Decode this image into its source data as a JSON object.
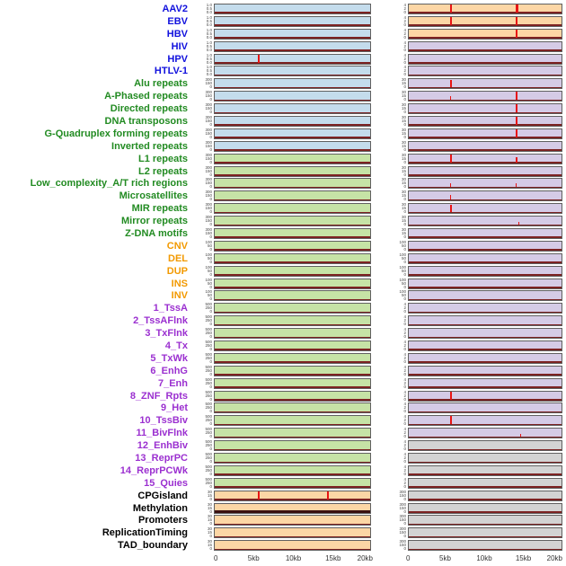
{
  "chart_data": {
    "type": "area",
    "description": "Multi-track genomic signal plot: 44 annotation tracks, two panel columns, red peaks over flat baseline",
    "x_axis": {
      "labels": [
        "0",
        "5kb",
        "10kb",
        "15kb",
        "20kb"
      ],
      "positions": [
        0,
        0.25,
        0.5,
        0.75,
        1
      ],
      "range_bp": [
        0,
        20000
      ]
    },
    "palette": {
      "label_blue": "#1111dd",
      "label_green": "#228B22",
      "label_orange": "#f29900",
      "label_purple": "#9b30d0",
      "label_black": "#000000",
      "panel_blue": "#c4dcec",
      "panel_green": "#c6e3a6",
      "panel_orange": "#fcd6a5",
      "panel_purple": "#d5cbe6",
      "panel_gray": "#d3d3d3",
      "spike": "#e81515",
      "baseline": "#7c2222",
      "baseline_strong": "#3a1010"
    },
    "tick_sets": {
      "A": [
        "1.0",
        "0.5",
        "0.0"
      ],
      "B": [
        "300",
        "150",
        "0"
      ],
      "C": [
        "30",
        "15",
        "0"
      ],
      "D": [
        "500",
        "250",
        "0"
      ],
      "E": [
        "4",
        "2",
        "0"
      ],
      "F": [
        "100",
        "50",
        "0"
      ]
    },
    "rows": [
      {
        "label": "AAV2",
        "lc": "blue",
        "lbg": "blue",
        "rbg": "orange",
        "lt": "A",
        "rt": "E",
        "ls": [],
        "rs": [
          [
            0.27,
            0.9,
            2
          ],
          [
            0.7,
            0.9,
            3
          ]
        ]
      },
      {
        "label": "EBV",
        "lc": "blue",
        "lbg": "blue",
        "rbg": "orange",
        "lt": "A",
        "rt": "E",
        "ls": [],
        "rs": [
          [
            0.27,
            0.85,
            2
          ],
          [
            0.7,
            0.85,
            2
          ]
        ]
      },
      {
        "label": "HBV",
        "lc": "blue",
        "lbg": "blue",
        "rbg": "orange",
        "lt": "A",
        "rt": "E",
        "ls": [],
        "rs": [
          [
            0.7,
            0.92,
            2
          ]
        ]
      },
      {
        "label": "HIV",
        "lc": "blue",
        "lbg": "blue",
        "rbg": "purple",
        "lt": "A",
        "rt": "E",
        "ls": [],
        "rs": []
      },
      {
        "label": "HPV",
        "lc": "blue",
        "lbg": "blue",
        "rbg": "purple",
        "lt": "A",
        "rt": "E",
        "ls": [
          [
            0.28,
            0.9,
            2
          ]
        ],
        "rs": []
      },
      {
        "label": "HTLV-1",
        "lc": "blue",
        "lbg": "blue",
        "rbg": "purple",
        "lt": "A",
        "rt": "E",
        "ls": [],
        "rs": []
      },
      {
        "label": "Alu repeats",
        "lc": "green",
        "lbg": "blue",
        "rbg": "purple",
        "lt": "B",
        "rt": "C",
        "ls": [],
        "rs": [
          [
            0.27,
            0.8,
            2
          ]
        ]
      },
      {
        "label": "A-Phased repeats",
        "lc": "green",
        "lbg": "blue",
        "rbg": "purple",
        "lt": "B",
        "rt": "C",
        "ls": [],
        "rs": [
          [
            0.27,
            0.45,
            1
          ],
          [
            0.7,
            0.92,
            2
          ]
        ]
      },
      {
        "label": "Directed repeats",
        "lc": "green",
        "lbg": "blue",
        "rbg": "purple",
        "lt": "B",
        "rt": "C",
        "ls": [],
        "rs": [
          [
            0.7,
            0.88,
            2
          ]
        ]
      },
      {
        "label": "DNA transposons",
        "lc": "green",
        "lbg": "blue",
        "rbg": "purple",
        "lt": "B",
        "rt": "C",
        "ls": [],
        "rs": [
          [
            0.7,
            0.92,
            2
          ]
        ]
      },
      {
        "label": "G-Quadruplex forming repeats",
        "lc": "green",
        "lbg": "blue",
        "rbg": "purple",
        "lt": "B",
        "rt": "C",
        "ls": [],
        "rs": [
          [
            0.7,
            0.85,
            2
          ]
        ]
      },
      {
        "label": "Inverted repeats",
        "lc": "green",
        "lbg": "blue",
        "rbg": "purple",
        "lt": "B",
        "rt": "C",
        "ls": [],
        "rs": []
      },
      {
        "label": "L1 repeats",
        "lc": "green",
        "lbg": "green",
        "rbg": "purple",
        "lt": "B",
        "rt": "C",
        "ls": [],
        "rs": [
          [
            0.27,
            0.85,
            2
          ],
          [
            0.7,
            0.55,
            2
          ]
        ]
      },
      {
        "label": "L2 repeats",
        "lc": "green",
        "lbg": "green",
        "rbg": "purple",
        "lt": "B",
        "rt": "C",
        "ls": [],
        "rs": []
      },
      {
        "label": "Low_complexity_A/T rich regions",
        "lc": "green",
        "lbg": "green",
        "rbg": "purple",
        "lt": "B",
        "rt": "C",
        "ls": [],
        "rs": [
          [
            0.27,
            0.4,
            1
          ],
          [
            0.7,
            0.4,
            1
          ]
        ]
      },
      {
        "label": "Microsatellites",
        "lc": "green",
        "lbg": "green",
        "rbg": "purple",
        "lt": "B",
        "rt": "C",
        "ls": [],
        "rs": [
          [
            0.27,
            0.5,
            1
          ]
        ]
      },
      {
        "label": "MIR repeats",
        "lc": "green",
        "lbg": "green",
        "rbg": "purple",
        "lt": "B",
        "rt": "C",
        "ls": [],
        "rs": [
          [
            0.27,
            0.8,
            2
          ]
        ]
      },
      {
        "label": "Mirror repeats",
        "lc": "green",
        "lbg": "green",
        "rbg": "purple",
        "lt": "B",
        "rt": "C",
        "ls": [],
        "rs": [
          [
            0.72,
            0.3,
            1
          ]
        ]
      },
      {
        "label": "Z-DNA motifs",
        "lc": "green",
        "lbg": "green",
        "rbg": "purple",
        "lt": "B",
        "rt": "C",
        "ls": [],
        "rs": []
      },
      {
        "label": "CNV",
        "lc": "orange",
        "lbg": "green",
        "rbg": "purple",
        "lt": "F",
        "rt": "F",
        "ls": [],
        "rs": []
      },
      {
        "label": "DEL",
        "lc": "orange",
        "lbg": "green",
        "rbg": "purple",
        "lt": "F",
        "rt": "F",
        "ls": [],
        "rs": []
      },
      {
        "label": "DUP",
        "lc": "orange",
        "lbg": "green",
        "rbg": "purple",
        "lt": "F",
        "rt": "F",
        "ls": [],
        "rs": []
      },
      {
        "label": "INS",
        "lc": "orange",
        "lbg": "green",
        "rbg": "purple",
        "lt": "F",
        "rt": "F",
        "ls": [],
        "rs": []
      },
      {
        "label": "INV",
        "lc": "orange",
        "lbg": "green",
        "rbg": "purple",
        "lt": "F",
        "rt": "F",
        "ls": [],
        "rs": []
      },
      {
        "label": "1_TssA",
        "lc": "purple",
        "lbg": "green",
        "rbg": "purple",
        "lt": "D",
        "rt": "E",
        "ls": [],
        "rs": []
      },
      {
        "label": "2_TssAFlnk",
        "lc": "purple",
        "lbg": "green",
        "rbg": "purple",
        "lt": "D",
        "rt": "E",
        "ls": [],
        "rs": []
      },
      {
        "label": "3_TxFlnk",
        "lc": "purple",
        "lbg": "green",
        "rbg": "purple",
        "lt": "D",
        "rt": "E",
        "ls": [],
        "rs": []
      },
      {
        "label": "4_Tx",
        "lc": "purple",
        "lbg": "green",
        "rbg": "purple",
        "lt": "D",
        "rt": "E",
        "ls": [],
        "rs": []
      },
      {
        "label": "5_TxWk",
        "lc": "purple",
        "lbg": "green",
        "rbg": "purple",
        "lt": "D",
        "rt": "E",
        "ls": [],
        "rs": []
      },
      {
        "label": "6_EnhG",
        "lc": "purple",
        "lbg": "green",
        "rbg": "purple",
        "lt": "D",
        "rt": "E",
        "ls": [],
        "rs": []
      },
      {
        "label": "7_Enh",
        "lc": "purple",
        "lbg": "green",
        "rbg": "purple",
        "lt": "D",
        "rt": "E",
        "ls": [],
        "rs": []
      },
      {
        "label": "8_ZNF_Rpts",
        "lc": "purple",
        "lbg": "green",
        "rbg": "purple",
        "lt": "D",
        "rt": "E",
        "ls": [],
        "rs": [
          [
            0.27,
            0.92,
            2
          ]
        ]
      },
      {
        "label": "9_Het",
        "lc": "purple",
        "lbg": "green",
        "rbg": "purple",
        "lt": "D",
        "rt": "E",
        "ls": [],
        "rs": []
      },
      {
        "label": "10_TssBiv",
        "lc": "purple",
        "lbg": "green",
        "rbg": "purple",
        "lt": "D",
        "rt": "E",
        "ls": [],
        "rs": [
          [
            0.27,
            0.92,
            2
          ]
        ]
      },
      {
        "label": "11_BivFlnk",
        "lc": "purple",
        "lbg": "green",
        "rbg": "purple",
        "lt": "D",
        "rt": "E",
        "ls": [],
        "rs": [
          [
            0.73,
            0.3,
            1
          ]
        ]
      },
      {
        "label": "12_EnhBiv",
        "lc": "purple",
        "lbg": "green",
        "rbg": "gray",
        "lt": "D",
        "rt": "E",
        "ls": [],
        "rs": []
      },
      {
        "label": "13_ReprPC",
        "lc": "purple",
        "lbg": "green",
        "rbg": "gray",
        "lt": "D",
        "rt": "E",
        "ls": [],
        "rs": []
      },
      {
        "label": "14_ReprPCWk",
        "lc": "purple",
        "lbg": "green",
        "rbg": "gray",
        "lt": "D",
        "rt": "E",
        "ls": [],
        "rs": []
      },
      {
        "label": "15_Quies",
        "lc": "purple",
        "lbg": "green",
        "rbg": "gray",
        "lt": "D",
        "rt": "E",
        "ls": [],
        "rs": []
      },
      {
        "label": "CPGisland",
        "lc": "black",
        "lbg": "orange",
        "rbg": "gray",
        "lt": "C",
        "rt": "B",
        "ls": [
          [
            0.28,
            0.88,
            2
          ],
          [
            0.72,
            0.88,
            2
          ]
        ],
        "rs": []
      },
      {
        "label": "Methylation",
        "lc": "black",
        "lbg": "orange",
        "rbg": "gray",
        "lt": "C",
        "rt": "B",
        "ls": [],
        "rs": [],
        "strong_baseline": true
      },
      {
        "label": "Promoters",
        "lc": "black",
        "lbg": "orange",
        "rbg": "gray",
        "lt": "C",
        "rt": "B",
        "ls": [],
        "rs": []
      },
      {
        "label": "ReplicationTiming",
        "lc": "black",
        "lbg": "orange",
        "rbg": "gray",
        "lt": "C",
        "rt": "B",
        "ls": [],
        "rs": []
      },
      {
        "label": "TAD_boundary",
        "lc": "black",
        "lbg": "orange",
        "rbg": "gray",
        "lt": "C",
        "rt": "B",
        "ls": [],
        "rs": []
      }
    ]
  }
}
